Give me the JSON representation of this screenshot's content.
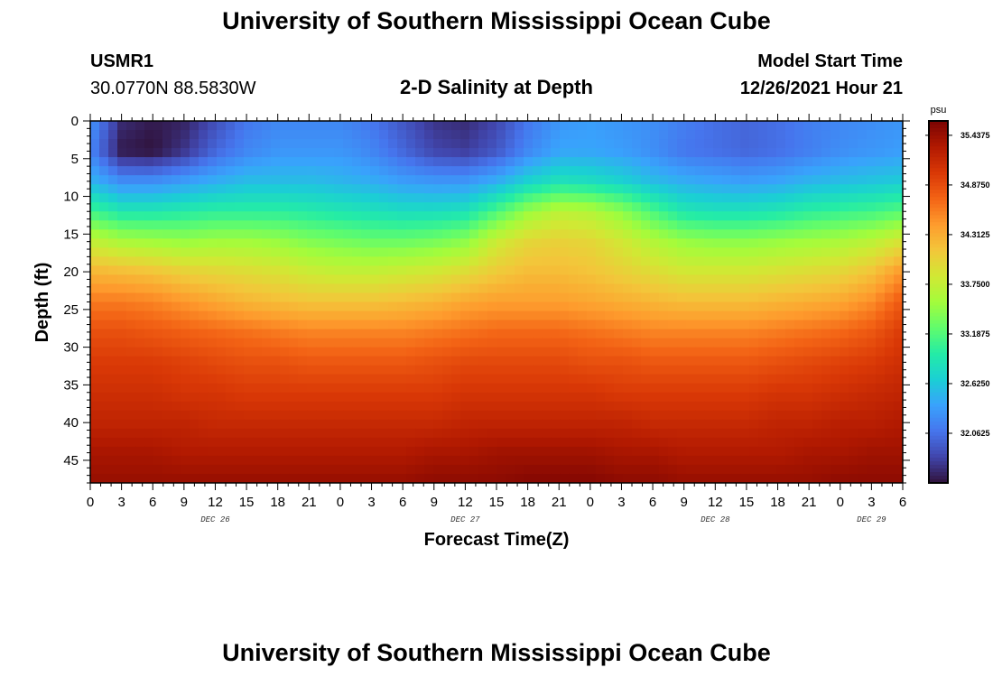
{
  "page": {
    "title": "University of Southern Mississippi Ocean Cube",
    "station_id": "USMR1",
    "coordinates": "30.0770N  88.5830W",
    "plot_title": "2-D Salinity at Depth",
    "model_start_label": "Model Start Time",
    "model_start_value": "12/26/2021 Hour 21",
    "footer_title": "University of Southern Mississippi Ocean Cube"
  },
  "chart_data": {
    "type": "heatmap",
    "title": "2-D Salinity at Depth",
    "xlabel": "Forecast Time(Z)",
    "ylabel": "Depth (ft)",
    "x_range_hours": [
      0,
      78
    ],
    "y_range_ft": [
      0,
      48
    ],
    "x_tick_hours": [
      0,
      3,
      6,
      9,
      12,
      15,
      18,
      21,
      24,
      27,
      30,
      33,
      36,
      39,
      42,
      45,
      48,
      51,
      54,
      57,
      60,
      63,
      66,
      69,
      72,
      75,
      78
    ],
    "x_tick_labels": [
      "0",
      "3",
      "6",
      "9",
      "12",
      "15",
      "18",
      "21",
      "0",
      "3",
      "6",
      "9",
      "12",
      "15",
      "18",
      "21",
      "0",
      "3",
      "6",
      "9",
      "12",
      "15",
      "18",
      "21",
      "0",
      "3",
      "6"
    ],
    "y_ticks": [
      0,
      5,
      10,
      15,
      20,
      25,
      30,
      35,
      40,
      45
    ],
    "y_tick_labels": [
      "0",
      "5",
      "10",
      "15",
      "20",
      "25",
      "30",
      "35",
      "40",
      "45"
    ],
    "day_labels": [
      {
        "label": "DEC 26",
        "hour": 12
      },
      {
        "label": "DEC 27",
        "hour": 36
      },
      {
        "label": "DEC 28",
        "hour": 60
      },
      {
        "label": "DEC 29",
        "hour": 75
      }
    ],
    "colorbar": {
      "unit": "psu",
      "min": 31.5,
      "max": 35.6,
      "ticks": [
        35.4375,
        34.875,
        34.3125,
        33.75,
        33.1875,
        32.625,
        32.0625
      ],
      "tick_labels": [
        "35.4375",
        "34.8750",
        "34.3125",
        "33.7500",
        "33.1875",
        "32.6250",
        "32.0625"
      ],
      "colors": [
        "#30123b",
        "#4145ab",
        "#4675ed",
        "#39a2fc",
        "#1bcfd4",
        "#24eca6",
        "#61fc6c",
        "#a4fc3b",
        "#d1e834",
        "#f3c63a",
        "#fe9b2d",
        "#f36315",
        "#d93806",
        "#b11901",
        "#7a0402"
      ]
    },
    "salinity_psu": {
      "hours": [
        0,
        3,
        6,
        9,
        12,
        15,
        18,
        21,
        24,
        27,
        30,
        33,
        36,
        39,
        42,
        45,
        48,
        51,
        54,
        57,
        60,
        63,
        66,
        69,
        72,
        75,
        78
      ],
      "depths_ft": [
        0,
        4,
        8,
        12,
        16,
        20,
        24,
        28,
        32,
        36,
        40,
        44,
        48
      ],
      "values": [
        [
          32.3,
          31.65,
          31.55,
          31.6,
          31.85,
          32.1,
          32.2,
          32.2,
          32.2,
          32.1,
          31.9,
          31.7,
          31.65,
          31.8,
          32.1,
          32.3,
          32.35,
          32.3,
          32.25,
          32.15,
          32.05,
          32.0,
          32.05,
          32.15,
          32.2,
          32.25,
          32.3
        ],
        [
          32.2,
          31.55,
          31.5,
          31.7,
          32.0,
          32.2,
          32.3,
          32.3,
          32.3,
          32.2,
          32.0,
          31.8,
          31.75,
          31.9,
          32.2,
          32.4,
          32.4,
          32.35,
          32.25,
          32.1,
          32.05,
          32.0,
          32.05,
          32.15,
          32.25,
          32.3,
          32.35
        ],
        [
          32.5,
          32.25,
          32.25,
          32.35,
          32.45,
          32.55,
          32.55,
          32.55,
          32.5,
          32.45,
          32.35,
          32.3,
          32.3,
          32.45,
          32.7,
          32.85,
          32.8,
          32.7,
          32.55,
          32.45,
          32.4,
          32.35,
          32.4,
          32.5,
          32.55,
          32.6,
          32.65
        ],
        [
          33.1,
          32.9,
          32.9,
          32.95,
          33.0,
          33.0,
          33.0,
          32.95,
          32.9,
          32.85,
          32.8,
          32.8,
          32.85,
          33.15,
          33.5,
          33.7,
          33.65,
          33.45,
          33.15,
          32.9,
          32.85,
          32.85,
          32.9,
          33.0,
          33.05,
          33.1,
          33.2
        ],
        [
          33.75,
          33.6,
          33.55,
          33.5,
          33.55,
          33.55,
          33.5,
          33.4,
          33.35,
          33.3,
          33.3,
          33.35,
          33.45,
          33.8,
          34.0,
          34.05,
          34.0,
          33.85,
          33.65,
          33.5,
          33.45,
          33.45,
          33.5,
          33.55,
          33.6,
          33.7,
          33.9
        ],
        [
          34.25,
          34.2,
          34.15,
          34.05,
          34.0,
          33.95,
          33.9,
          33.8,
          33.75,
          33.75,
          33.8,
          33.85,
          33.95,
          34.1,
          34.2,
          34.2,
          34.15,
          34.05,
          33.95,
          33.85,
          33.85,
          33.85,
          33.9,
          33.95,
          34.0,
          34.15,
          34.45
        ],
        [
          34.6,
          34.6,
          34.55,
          34.45,
          34.35,
          34.25,
          34.2,
          34.15,
          34.15,
          34.15,
          34.2,
          34.25,
          34.35,
          34.4,
          34.4,
          34.4,
          34.35,
          34.3,
          34.25,
          34.2,
          34.2,
          34.2,
          34.25,
          34.3,
          34.35,
          34.5,
          34.8
        ],
        [
          34.85,
          34.85,
          34.8,
          34.75,
          34.7,
          34.65,
          34.6,
          34.55,
          34.55,
          34.55,
          34.55,
          34.6,
          34.65,
          34.7,
          34.7,
          34.7,
          34.65,
          34.6,
          34.55,
          34.55,
          34.55,
          34.55,
          34.6,
          34.65,
          34.7,
          34.8,
          35.0
        ],
        [
          35.0,
          35.0,
          35.0,
          34.95,
          34.9,
          34.85,
          34.85,
          34.8,
          34.8,
          34.8,
          34.8,
          34.85,
          34.9,
          34.9,
          34.9,
          34.9,
          34.85,
          34.85,
          34.8,
          34.8,
          34.8,
          34.8,
          34.85,
          34.9,
          34.95,
          35.0,
          35.1
        ],
        [
          35.1,
          35.1,
          35.1,
          35.05,
          35.05,
          35.0,
          35.0,
          35.0,
          35.0,
          35.0,
          35.0,
          35.0,
          35.05,
          35.05,
          35.05,
          35.05,
          35.05,
          35.0,
          35.0,
          35.0,
          35.0,
          35.0,
          35.05,
          35.05,
          35.1,
          35.15,
          35.2
        ],
        [
          35.2,
          35.2,
          35.2,
          35.2,
          35.15,
          35.15,
          35.15,
          35.15,
          35.15,
          35.15,
          35.15,
          35.15,
          35.2,
          35.2,
          35.2,
          35.2,
          35.2,
          35.2,
          35.15,
          35.15,
          35.15,
          35.15,
          35.2,
          35.2,
          35.25,
          35.25,
          35.3
        ],
        [
          35.35,
          35.35,
          35.35,
          35.3,
          35.3,
          35.3,
          35.3,
          35.3,
          35.3,
          35.3,
          35.3,
          35.35,
          35.35,
          35.4,
          35.4,
          35.4,
          35.4,
          35.35,
          35.35,
          35.3,
          35.3,
          35.3,
          35.3,
          35.35,
          35.35,
          35.4,
          35.4
        ],
        [
          35.45,
          35.45,
          35.45,
          35.45,
          35.45,
          35.45,
          35.45,
          35.45,
          35.45,
          35.45,
          35.45,
          35.5,
          35.5,
          35.5,
          35.55,
          35.55,
          35.55,
          35.5,
          35.5,
          35.45,
          35.45,
          35.45,
          35.45,
          35.45,
          35.5,
          35.5,
          35.5
        ]
      ]
    }
  }
}
